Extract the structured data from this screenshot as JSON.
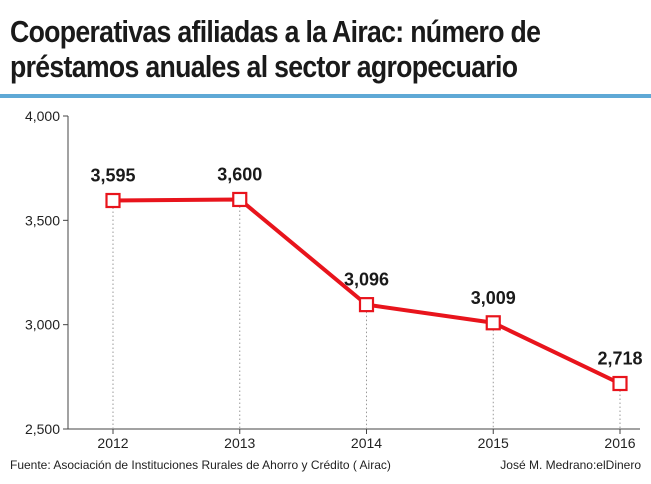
{
  "title_line1": "Cooperativas afiliadas a la Airac: número de",
  "title_line2": "préstamos anuales al sector agropecuario",
  "source": "Fuente: Asociación de Instituciones Rurales de Ahorro y Crédito ( Airac)",
  "credit": "José M. Medrano:elDinero",
  "colors": {
    "line": "#e8141c",
    "accent_rule": "#5fa9d6",
    "axis": "#444444"
  },
  "chart_data": {
    "type": "line",
    "title": "Cooperativas afiliadas a la Airac: número de préstamos anuales al sector agropecuario",
    "categories": [
      "2012",
      "2013",
      "2014",
      "2015",
      "2016"
    ],
    "series": [
      {
        "values": [
          3595,
          3600,
          3096,
          3009,
          2718
        ]
      }
    ],
    "data_labels": [
      "3,595",
      "3,600",
      "3,096",
      "3,009",
      "2,718"
    ],
    "yticks": [
      2500,
      3000,
      3500,
      4000
    ],
    "ytick_labels": [
      "2,500",
      "3,000",
      "3,500",
      "4,000"
    ],
    "ylim": [
      2500,
      4000
    ],
    "xlabel": "",
    "ylabel": "",
    "grid": false,
    "marker": "open-square"
  }
}
